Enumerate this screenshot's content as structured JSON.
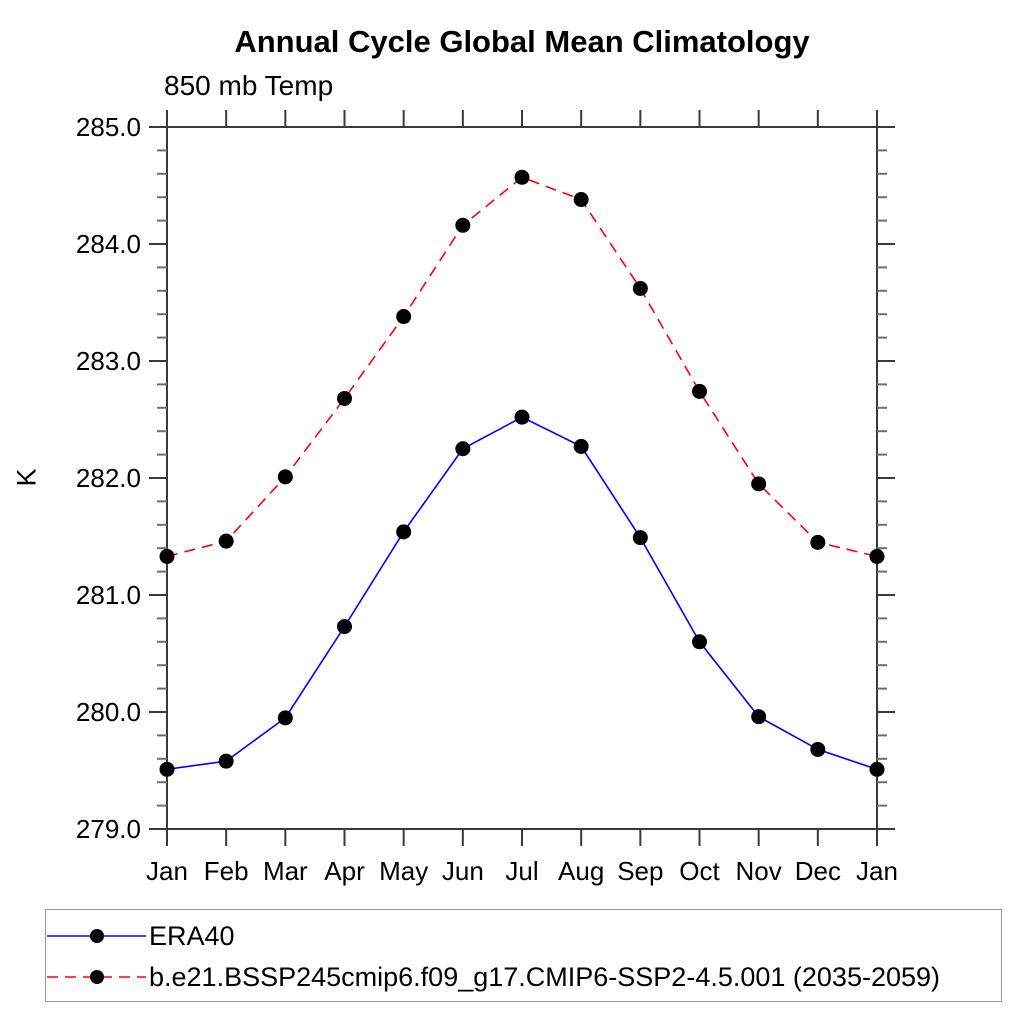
{
  "chart_data": {
    "type": "line",
    "title": "Annual Cycle Global Mean Climatology",
    "subtitle": "850 mb Temp",
    "ylabel": "K",
    "categories": [
      "Jan",
      "Feb",
      "Mar",
      "Apr",
      "May",
      "Jun",
      "Jul",
      "Aug",
      "Sep",
      "Oct",
      "Nov",
      "Dec",
      "Jan"
    ],
    "ylim": [
      279.0,
      285.0
    ],
    "ytick_interval": 1.0,
    "yminor_interval": 0.2,
    "ytick_labels": [
      "279.0",
      "280.0",
      "281.0",
      "282.0",
      "283.0",
      "284.0",
      "285.0"
    ],
    "grid": false,
    "legend_position": "bottom-left",
    "series": [
      {
        "name": "ERA40",
        "line_color": "#0000ff",
        "line_style": "solid",
        "marker": "filled-circle",
        "marker_color": "#000000",
        "values": [
          279.51,
          279.58,
          279.95,
          280.73,
          281.54,
          282.25,
          282.52,
          282.27,
          281.49,
          280.6,
          279.96,
          279.68,
          279.51
        ]
      },
      {
        "name": "b.e21.BSSP245cmip6.f09_g17.CMIP6-SSP2-4.5.001 (2035-2059)",
        "line_color": "#ff0000",
        "line_style": "dashed",
        "marker": "filled-circle",
        "marker_color": "#000000",
        "values": [
          281.33,
          281.46,
          282.01,
          282.68,
          283.38,
          284.16,
          284.57,
          284.38,
          283.62,
          282.74,
          281.95,
          281.45,
          281.33
        ]
      }
    ]
  }
}
